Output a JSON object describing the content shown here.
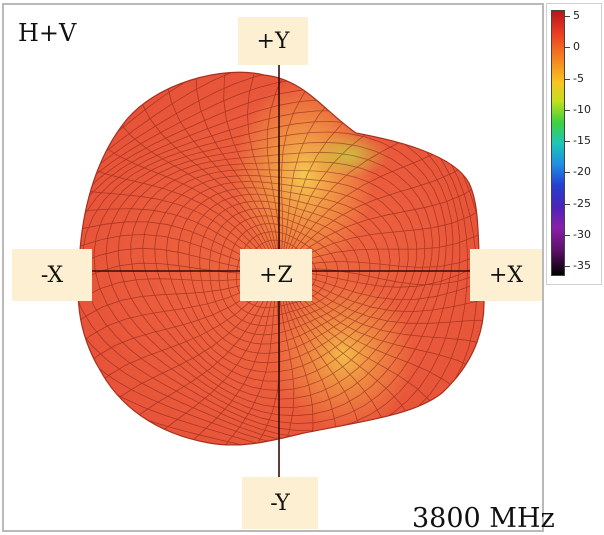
{
  "plot": {
    "view_label": "H+V",
    "frequency_label": "3800 MHz",
    "axis_labels": {
      "pos_y": "+Y",
      "neg_y": "-Y",
      "neg_x": "-X",
      "pos_x": "+X",
      "center": "+Z"
    },
    "colors": {
      "surface_base": "#e8553a",
      "surface_hot": "#f2b84a",
      "mesh_line": "#7a1d12",
      "axis_line": "#3a0a06",
      "label_background": "#fdefd2"
    }
  },
  "colorbar": {
    "ticks": [
      "5",
      "0",
      "-5",
      "-10",
      "-15",
      "-20",
      "-25",
      "-30",
      "-35"
    ]
  }
}
